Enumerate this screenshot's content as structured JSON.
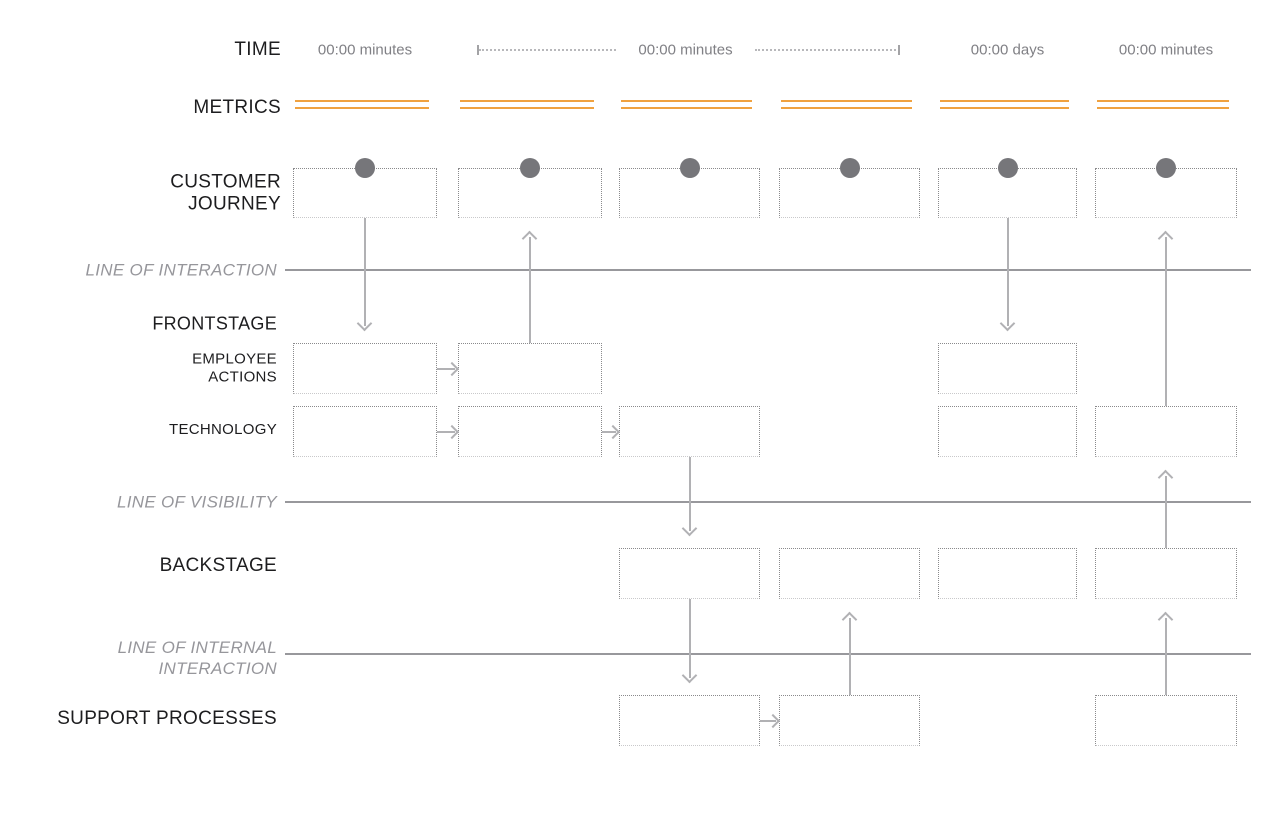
{
  "diagram": {
    "type": "service-blueprint-template",
    "columns": 6,
    "time": {
      "label": "TIME",
      "entries": [
        {
          "kind": "label",
          "col": 1,
          "text": "00:00 minutes"
        },
        {
          "kind": "bracket",
          "text": "00:00 minutes"
        },
        {
          "kind": "label",
          "col": 5,
          "text": "00:00 days"
        },
        {
          "kind": "label",
          "col": 6,
          "text": "00:00 minutes"
        }
      ]
    },
    "metrics": {
      "label": "METRICS",
      "columns": [
        1,
        2,
        3,
        4,
        5,
        6
      ]
    },
    "frontstage_label": "FRONTSTAGE",
    "bands": [
      {
        "id": "customer-journey",
        "label": "CUSTOMER JOURNEY",
        "boxes": [
          1,
          2,
          3,
          4,
          5,
          6
        ],
        "dot": true
      },
      {
        "id": "employee-actions",
        "label": "EMPLOYEE ACTIONS",
        "boxes": [
          1,
          2,
          5
        ],
        "dot": false
      },
      {
        "id": "technology",
        "label": "TECHNOLOGY",
        "boxes": [
          1,
          2,
          3,
          5,
          6
        ],
        "dot": false
      },
      {
        "id": "backstage",
        "label": "BACKSTAGE",
        "boxes": [
          3,
          4,
          5,
          6
        ],
        "dot": false
      },
      {
        "id": "support-processes",
        "label": "SUPPORT PROCESSES",
        "boxes": [
          3,
          4,
          6
        ],
        "dot": false
      }
    ],
    "separators": [
      {
        "id": "line-of-interaction",
        "label": "LINE OF INTERACTION"
      },
      {
        "id": "line-of-visibility",
        "label": "LINE OF VISIBILITY"
      },
      {
        "id": "line-of-internal-interaction",
        "label": "LINE OF INTERNAL INTERACTION"
      }
    ],
    "arrows": {
      "vertical": [
        {
          "col": 1,
          "from": "customer-journey",
          "to": "employee-actions",
          "dir": "down"
        },
        {
          "col": 2,
          "from": "employee-actions",
          "to": "customer-journey",
          "dir": "up"
        },
        {
          "col": 3,
          "from": "technology",
          "to": "backstage",
          "dir": "down"
        },
        {
          "col": 3,
          "from": "backstage",
          "to": "support-processes",
          "dir": "down"
        },
        {
          "col": 4,
          "from": "support-processes",
          "to": "backstage",
          "dir": "up"
        },
        {
          "col": 5,
          "from": "customer-journey",
          "to": "employee-actions",
          "dir": "down"
        },
        {
          "col": 6,
          "from": "technology",
          "to": "customer-journey",
          "dir": "up"
        },
        {
          "col": 6,
          "from": "backstage",
          "to": "technology",
          "dir": "up"
        },
        {
          "col": 6,
          "from": "support-processes",
          "to": "backstage",
          "dir": "up"
        }
      ],
      "horizontal": [
        {
          "row": "employee-actions",
          "fromCol": 1,
          "toCol": 2
        },
        {
          "row": "technology",
          "fromCol": 1,
          "toCol": 2
        },
        {
          "row": "technology",
          "fromCol": 2,
          "toCol": 3
        },
        {
          "row": "support-processes",
          "fromCol": 3,
          "toCol": 4
        }
      ]
    },
    "colors": {
      "accent_orange": "#f0a240",
      "step_dot_gray": "#76767a",
      "separator_line_gray": "#98989c",
      "arrow_gray": "#b1b1b4",
      "label_black": "#1d1d1f",
      "time_text_gray": "#808085",
      "separator_label_gray": "#96969b",
      "box_border_gray": "#8a8a8c"
    }
  }
}
